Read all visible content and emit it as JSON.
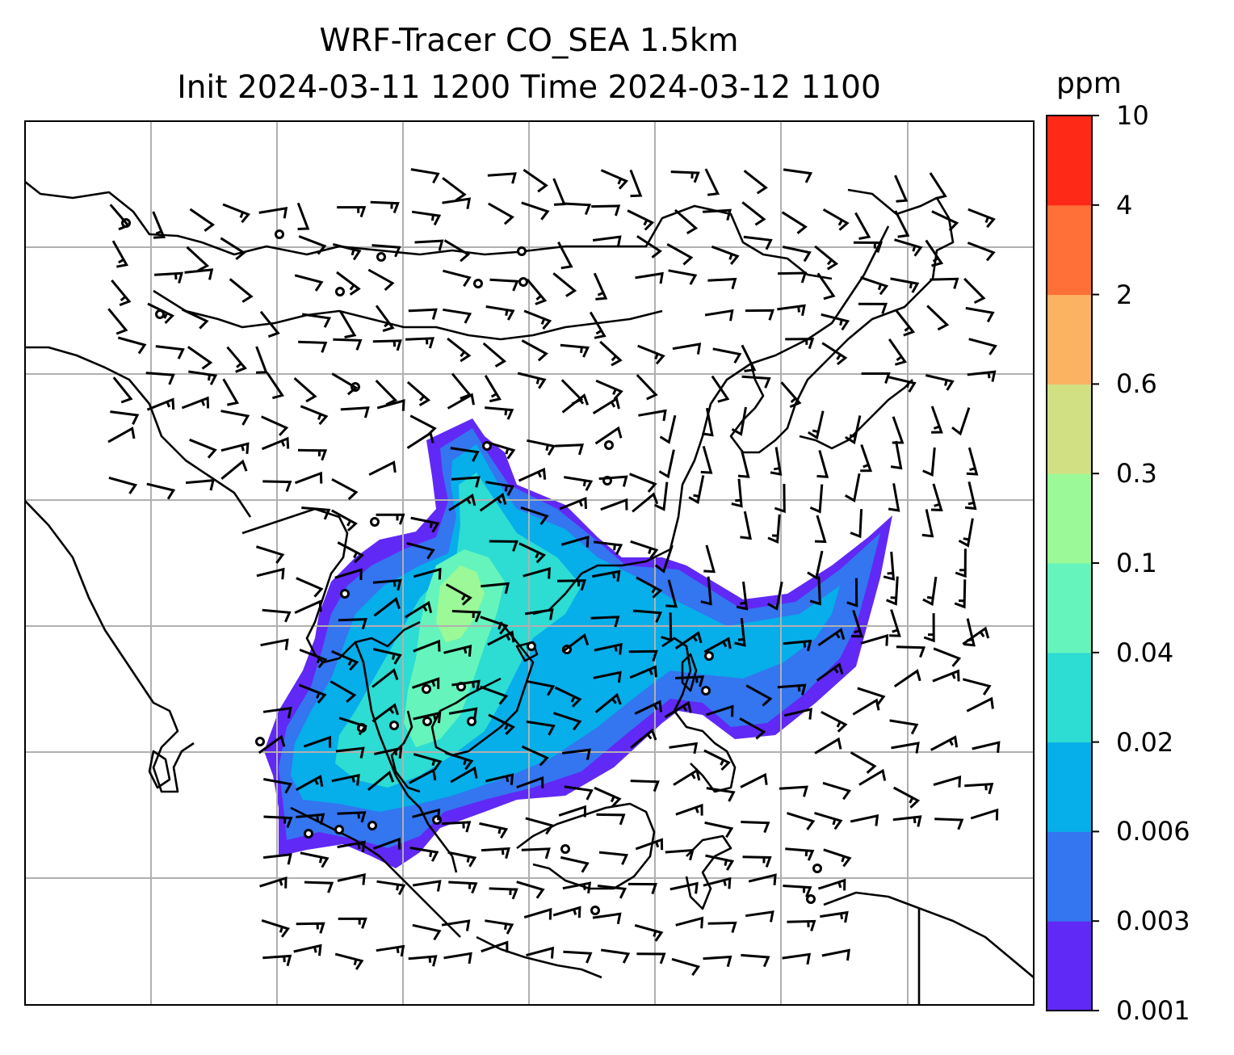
{
  "title_line1": "WRF-Tracer CO_SEA 1.5km",
  "title_line2": "Init 2024-03-11 1200 Time 2024-03-12 1100",
  "colorbar": {
    "unit": "ppm",
    "levels": [
      "0.001",
      "0.003",
      "0.006",
      "0.02",
      "0.04",
      "0.1",
      "0.3",
      "0.6",
      "2",
      "4",
      "10"
    ],
    "colors": [
      "#6129f5",
      "#3475f0",
      "#06aeea",
      "#2ddcd2",
      "#65f5bc",
      "#9bf998",
      "#d2e084",
      "#fbb261",
      "#ff7039",
      "#ff2918"
    ]
  },
  "map": {
    "plume_colors": [
      "#6129f5",
      "#3475f0",
      "#06aeea",
      "#2ddcd2",
      "#65f5bc",
      "#9bf998"
    ],
    "coastline_color": "#000000",
    "gridline_color": "#b0b0b0",
    "barb_color": "#000000"
  }
}
